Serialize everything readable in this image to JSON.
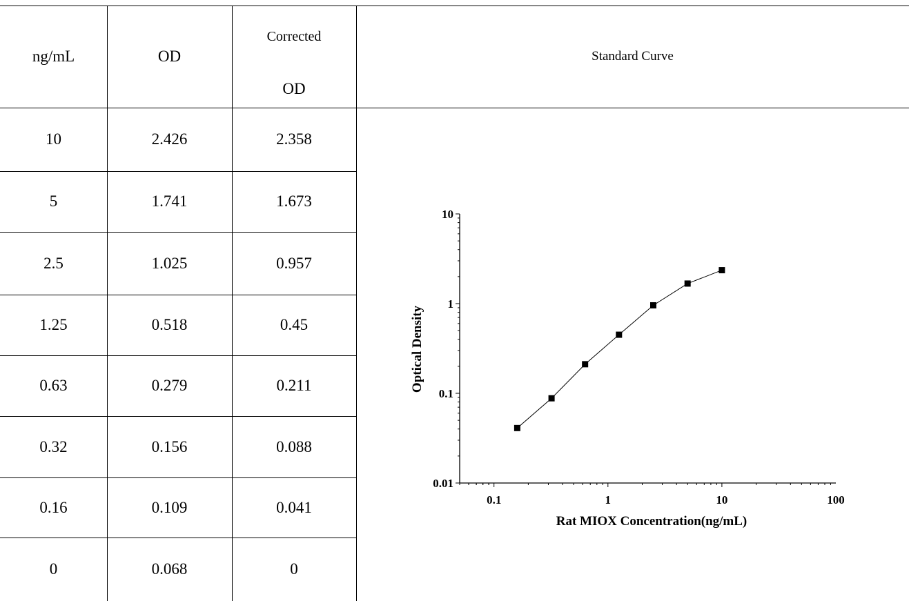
{
  "table": {
    "headers": {
      "conc": "ng/mL",
      "od": "OD",
      "corrected_line1": "Corrected",
      "corrected_line2": "OD",
      "curve": "Standard Curve"
    },
    "rows": [
      {
        "conc": "10",
        "od": "2.426",
        "corrected": "2.358"
      },
      {
        "conc": "5",
        "od": "1.741",
        "corrected": "1.673"
      },
      {
        "conc": "2.5",
        "od": "1.025",
        "corrected": "0.957"
      },
      {
        "conc": "1.25",
        "od": "0.518",
        "corrected": "0.45"
      },
      {
        "conc": "0.63",
        "od": "0.279",
        "corrected": "0.211"
      },
      {
        "conc": "0.32",
        "od": "0.156",
        "corrected": "0.088"
      },
      {
        "conc": "0.16",
        "od": "0.109",
        "corrected": "0.041"
      },
      {
        "conc": "0",
        "od": "0.068",
        "corrected": "0"
      }
    ]
  },
  "chart_data": {
    "type": "line",
    "title": "",
    "xlabel": "Rat MIOX Concentration(ng/mL)",
    "ylabel": "Optical Density",
    "x_scale": "log",
    "y_scale": "log",
    "xlim": [
      0.05,
      100
    ],
    "ylim": [
      0.01,
      10
    ],
    "x_ticks": [
      "0.1",
      "1",
      "10",
      "100"
    ],
    "y_ticks": [
      "0.01",
      "0.1",
      "1",
      "10"
    ],
    "grid": false,
    "marker": "square",
    "series": [
      {
        "x": [
          0.16,
          0.32,
          0.63,
          1.25,
          2.5,
          5,
          10
        ],
        "y": [
          0.041,
          0.088,
          0.211,
          0.45,
          0.957,
          1.673,
          2.358
        ]
      }
    ],
    "color": "#000000"
  }
}
